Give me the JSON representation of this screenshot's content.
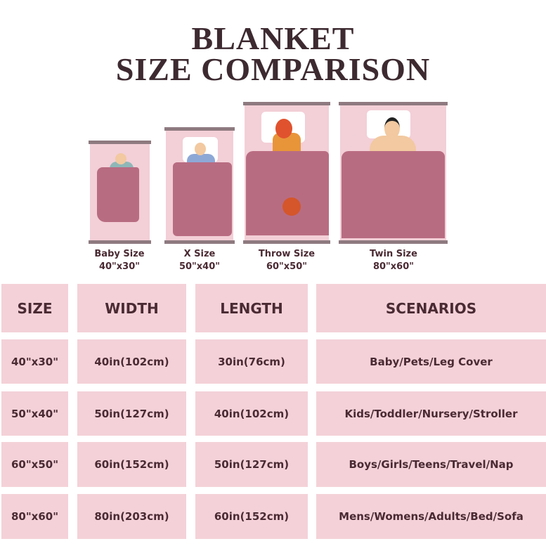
{
  "title": {
    "line1": "BLANKET",
    "line2": "SIZE COMPARISON"
  },
  "colors": {
    "cell": "#f4d1d8",
    "blanket": "#b86c82",
    "bed": "#f3cfd7",
    "text": "#4a2a33"
  },
  "beds": [
    {
      "name": "Baby Size",
      "size": "40\"x30\""
    },
    {
      "name": "X Size",
      "size": "50\"x40\""
    },
    {
      "name": "Throw Size",
      "size": "60\"x50\""
    },
    {
      "name": "Twin Size",
      "size": "80\"x60\""
    }
  ],
  "table": {
    "headers": [
      "SIZE",
      "WIDTH",
      "LENGTH",
      "SCENARIOS"
    ],
    "rows": [
      [
        "40\"x30\"",
        "40in(102cm)",
        "30in(76cm)",
        "Baby/Pets/Leg Cover"
      ],
      [
        "50\"x40\"",
        "50in(127cm)",
        "40in(102cm)",
        "Kids/Toddler/Nursery/Stroller"
      ],
      [
        "60\"x50\"",
        "60in(152cm)",
        "50in(127cm)",
        "Boys/Girls/Teens/Travel/Nap"
      ],
      [
        "80\"x60\"",
        "80in(203cm)",
        "60in(152cm)",
        "Mens/Womens/Adults/Bed/Sofa"
      ]
    ]
  }
}
